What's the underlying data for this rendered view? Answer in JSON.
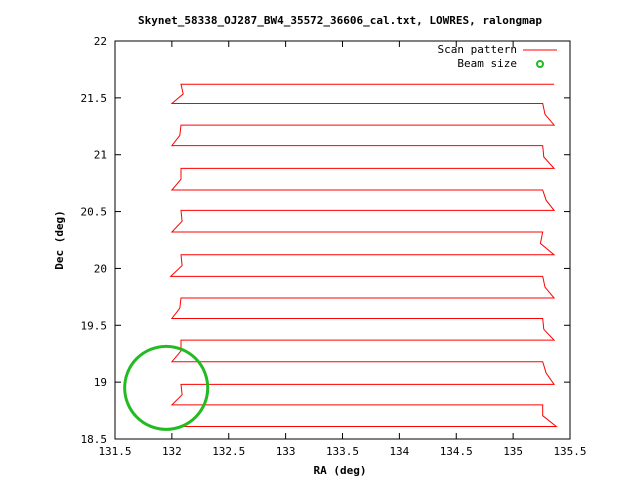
{
  "chart_data": {
    "type": "line",
    "title": "Skynet_58338_OJ287_BW4_35572_36606_cal.txt, LOWRES, ralongmap",
    "xlabel": "RA (deg)",
    "ylabel": "Dec (deg)",
    "xlim": [
      131.5,
      135.5
    ],
    "ylim": [
      18.5,
      22
    ],
    "xticks": [
      "131.5",
      "132",
      "132.5",
      "133",
      "133.5",
      "134",
      "134.5",
      "135",
      "135.5"
    ],
    "yticks": [
      "18.5",
      "19",
      "19.5",
      "20",
      "20.5",
      "21",
      "21.5",
      "22"
    ],
    "legend_position": "top-right",
    "series": [
      {
        "name": "Scan pattern",
        "color": "#ff0000",
        "scan_rows_dec": [
          18.61,
          18.8,
          18.98,
          19.18,
          19.37,
          19.56,
          19.74,
          19.93,
          20.12,
          20.32,
          20.51,
          20.69,
          20.88,
          21.08,
          21.26,
          21.45,
          21.62
        ],
        "ra_left_turn": [
          132.05,
          132.0,
          132.08,
          132.0,
          132.08,
          132.0,
          132.08,
          131.99,
          132.08,
          132.0,
          132.08,
          132.0,
          132.08,
          132.0,
          132.08,
          132.0,
          132.08
        ],
        "ra_right_turn": [
          135.38,
          135.26,
          135.36,
          135.26,
          135.36,
          135.26,
          135.36,
          135.26,
          135.36,
          135.26,
          135.36,
          135.26,
          135.36,
          135.26,
          135.36,
          135.26,
          135.36
        ]
      },
      {
        "name": "Beam size",
        "color": "#22bb22",
        "center": [
          131.95,
          18.95
        ],
        "radius_deg": 0.365
      }
    ]
  }
}
